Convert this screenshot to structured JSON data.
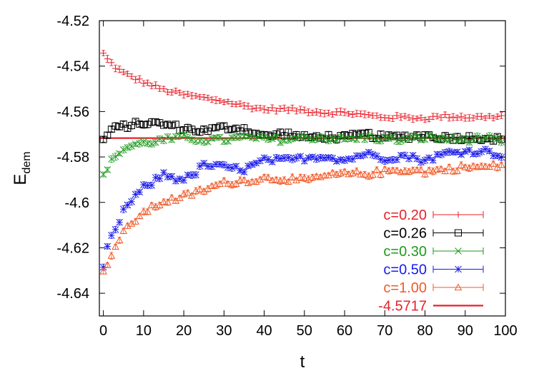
{
  "chart_data": {
    "type": "scatter",
    "xlabel": "t",
    "ylabel": {
      "main": "E",
      "sub": "dem"
    },
    "xlim": [
      -1,
      100
    ],
    "ylim": [
      -4.65,
      -4.52
    ],
    "xticks": [
      0,
      10,
      20,
      30,
      40,
      50,
      60,
      70,
      80,
      90,
      100
    ],
    "xtick_labels": [
      "0",
      "10",
      "20",
      "30",
      "40",
      "50",
      "60",
      "70",
      "80",
      "90",
      "100"
    ],
    "yticks": [
      -4.52,
      -4.54,
      -4.56,
      -4.58,
      -4.6,
      -4.62,
      -4.64
    ],
    "ytick_labels": [
      "-4.52",
      "-4.54",
      "-4.56",
      "-4.58",
      "-4.6",
      "-4.62",
      "-4.64"
    ],
    "grid": false,
    "legend_position": "bottom-right",
    "error_bars": true,
    "series": [
      {
        "name": "c=0.20",
        "marker": "plus",
        "color": "#e8202a",
        "anchors_x": [
          0,
          1,
          3,
          5,
          8,
          10,
          15,
          20,
          25,
          30,
          35,
          40,
          45,
          50,
          55,
          60,
          65,
          70,
          75,
          80,
          85,
          90,
          95,
          100
        ],
        "anchors_y": [
          -4.5345,
          -4.537,
          -4.5405,
          -4.543,
          -4.5455,
          -4.547,
          -4.5505,
          -4.5525,
          -4.554,
          -4.5555,
          -4.5575,
          -4.559,
          -4.559,
          -4.5595,
          -4.5605,
          -4.5605,
          -4.5615,
          -4.5625,
          -4.5625,
          -4.563,
          -4.562,
          -4.5625,
          -4.5625,
          -4.562
        ]
      },
      {
        "name": "c=0.26",
        "marker": "square",
        "color": "#000000",
        "anchors_x": [
          0,
          2,
          5,
          10,
          15,
          20,
          25,
          30,
          35,
          40,
          45,
          50,
          55,
          60,
          65,
          70,
          75,
          80,
          85,
          90,
          95,
          100
        ],
        "anchors_y": [
          -4.5725,
          -4.568,
          -4.5665,
          -4.565,
          -4.5655,
          -4.5675,
          -4.5685,
          -4.567,
          -4.5675,
          -4.571,
          -4.5695,
          -4.5715,
          -4.571,
          -4.5715,
          -4.57,
          -4.5715,
          -4.571,
          -4.5705,
          -4.5715,
          -4.5715,
          -4.5715,
          -4.5725
        ]
      },
      {
        "name": "c=0.30",
        "marker": "cross",
        "color": "#1e9a1e",
        "anchors_x": [
          0,
          1,
          3,
          5,
          8,
          10,
          15,
          20,
          25,
          30,
          35,
          40,
          45,
          50,
          55,
          60,
          65,
          70,
          75,
          80,
          85,
          90,
          95,
          100
        ],
        "anchors_y": [
          -4.5885,
          -4.5845,
          -4.5795,
          -4.5765,
          -4.5745,
          -4.574,
          -4.5725,
          -4.5715,
          -4.5725,
          -4.5725,
          -4.5715,
          -4.572,
          -4.5725,
          -4.5715,
          -4.5715,
          -4.5725,
          -4.5715,
          -4.572,
          -4.5725,
          -4.5715,
          -4.572,
          -4.5725,
          -4.5715,
          -4.5745
        ]
      },
      {
        "name": "c=0.50",
        "marker": "star",
        "color": "#1a1aeb",
        "anchors_x": [
          0,
          1,
          3,
          5,
          7,
          10,
          12,
          15,
          18,
          20,
          22,
          25,
          30,
          35,
          40,
          45,
          50,
          55,
          60,
          65,
          70,
          75,
          80,
          85,
          90,
          95,
          100
        ],
        "anchors_y": [
          -4.6295,
          -4.619,
          -4.6125,
          -4.6035,
          -4.5995,
          -4.5935,
          -4.5915,
          -4.5875,
          -4.5895,
          -4.5895,
          -4.5885,
          -4.5835,
          -4.5845,
          -4.5855,
          -4.5815,
          -4.5815,
          -4.5805,
          -4.5795,
          -4.5815,
          -4.5785,
          -4.5805,
          -4.5795,
          -4.5815,
          -4.5785,
          -4.5775,
          -4.5775,
          -4.5795
        ]
      },
      {
        "name": "c=1.00",
        "marker": "triangle",
        "color": "#f05a28",
        "anchors_x": [
          0,
          1,
          3,
          5,
          8,
          10,
          13,
          15,
          18,
          20,
          25,
          30,
          35,
          40,
          45,
          50,
          55,
          60,
          65,
          70,
          75,
          80,
          85,
          90,
          95,
          100
        ],
        "anchors_y": [
          -4.6315,
          -4.6265,
          -4.6195,
          -4.6135,
          -4.6075,
          -4.6045,
          -4.6015,
          -4.5995,
          -4.5985,
          -4.5975,
          -4.5945,
          -4.5915,
          -4.5905,
          -4.5895,
          -4.5895,
          -4.5905,
          -4.5885,
          -4.5875,
          -4.5875,
          -4.5865,
          -4.5855,
          -4.5865,
          -4.5855,
          -4.5845,
          -4.5845,
          -4.5835
        ]
      }
    ],
    "reference_line": {
      "name": "-4.5717",
      "y": -4.5717,
      "color": "#e8202a"
    }
  }
}
